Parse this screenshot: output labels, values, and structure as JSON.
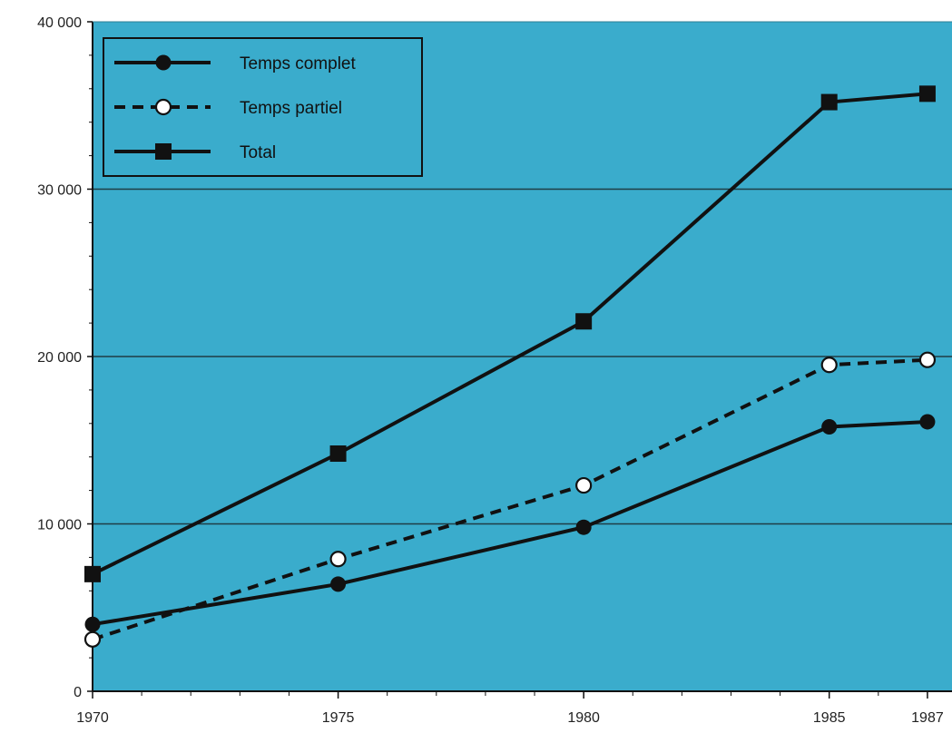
{
  "chart_data": {
    "type": "line",
    "title": "",
    "xlabel": "",
    "ylabel": "",
    "x": [
      1970,
      1975,
      1980,
      1985,
      1987
    ],
    "x_tick_labels": [
      "1970",
      "1975",
      "1980",
      "1985",
      "1987"
    ],
    "xlim": [
      1970,
      1987.5
    ],
    "ylim": [
      0,
      40000
    ],
    "y_ticks": [
      0,
      10000,
      20000,
      30000,
      40000
    ],
    "y_tick_labels": [
      "0",
      "10 000",
      "20 000",
      "30 000",
      "40 000"
    ],
    "grid": "horizontal",
    "legend_position": "top-left",
    "background_color": "#3aaccc",
    "line_color": "#111111",
    "series": [
      {
        "name": "Temps complet",
        "marker": "filled-circle",
        "line_style": "solid",
        "values": [
          4000,
          6400,
          9800,
          15800,
          16100
        ]
      },
      {
        "name": "Temps partiel",
        "marker": "open-circle",
        "line_style": "dashed",
        "values": [
          3100,
          7900,
          12300,
          19500,
          19800
        ]
      },
      {
        "name": "Total",
        "marker": "filled-square",
        "line_style": "solid",
        "values": [
          7000,
          14200,
          22100,
          35200,
          35700
        ]
      }
    ]
  }
}
